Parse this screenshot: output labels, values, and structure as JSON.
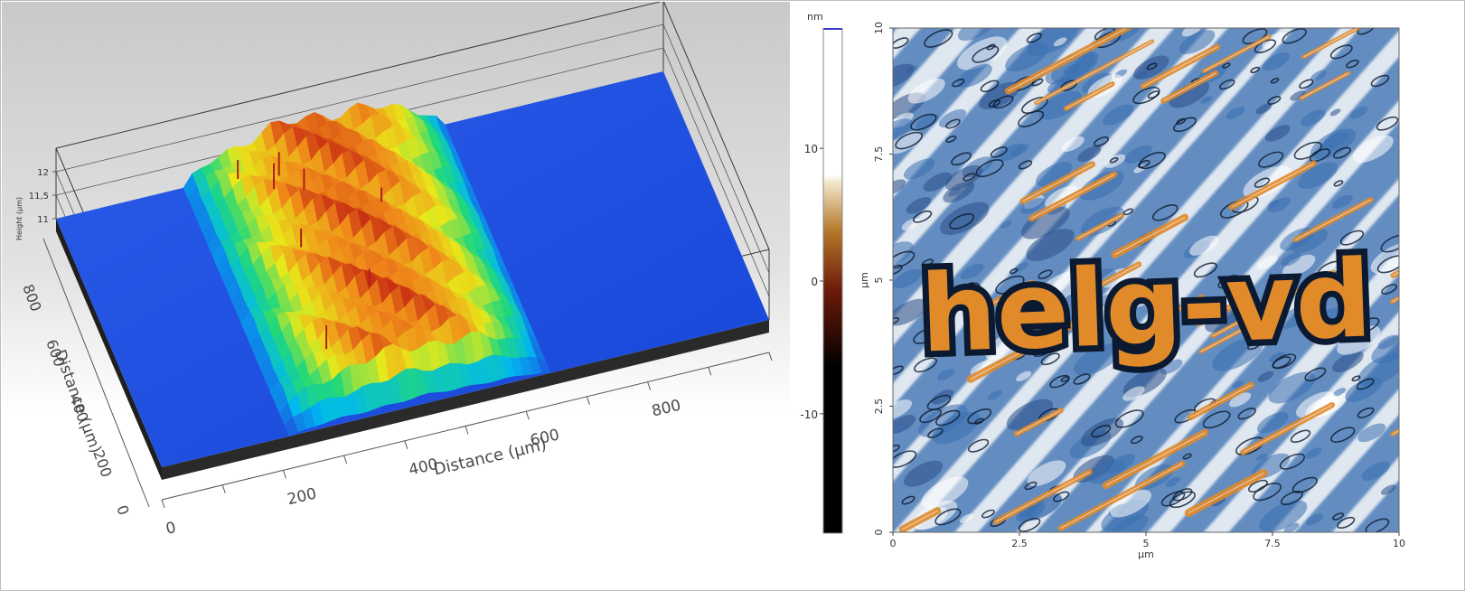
{
  "chart_data": [
    {
      "type": "surface3d",
      "z_axis": {
        "label": "Height (µm)",
        "ticks": [
          "12",
          "11,5",
          "11"
        ]
      },
      "y_axis": {
        "label": "Distance (µm)",
        "ticks": [
          "0",
          "200",
          "400",
          "600",
          "800"
        ],
        "range": [
          0,
          900
        ]
      },
      "x_axis": {
        "label": "Distance (µm)",
        "ticks": [
          "0",
          "200",
          "400",
          "600",
          "800"
        ],
        "range": [
          0,
          1000
        ]
      },
      "colormap": [
        "#1e4fe0",
        "#00b8f0",
        "#22d87a",
        "#e8e81a",
        "#f08a1a",
        "#c01a10"
      ],
      "features": {
        "ridge_x_range": [
          250,
          600
        ],
        "base_height": 11,
        "ridge_height": 12
      }
    },
    {
      "type": "heatmap",
      "inscription": "helg-vd",
      "x_axis": {
        "label": "µm",
        "ticks": [
          "0",
          "2.5",
          "5",
          "7.5",
          "10"
        ],
        "range": [
          0,
          10
        ]
      },
      "y_axis": {
        "label": "µm",
        "ticks": [
          "0",
          "2.5",
          "5",
          "7.5",
          "10"
        ],
        "range": [
          0,
          10
        ]
      },
      "colorbar": {
        "unit": "nm",
        "ticks": [
          "10",
          "0",
          "-10"
        ],
        "range": [
          -19,
          19
        ],
        "colors": [
          "#000000",
          "#6b1a0a",
          "#b5782a",
          "#e9d8a8",
          "#ffffff"
        ]
      },
      "palette": {
        "blue": "#3a6fb0",
        "pale": "#dfe7f0",
        "orange": "#e08a2a",
        "dark": "#0b1a30"
      }
    }
  ]
}
